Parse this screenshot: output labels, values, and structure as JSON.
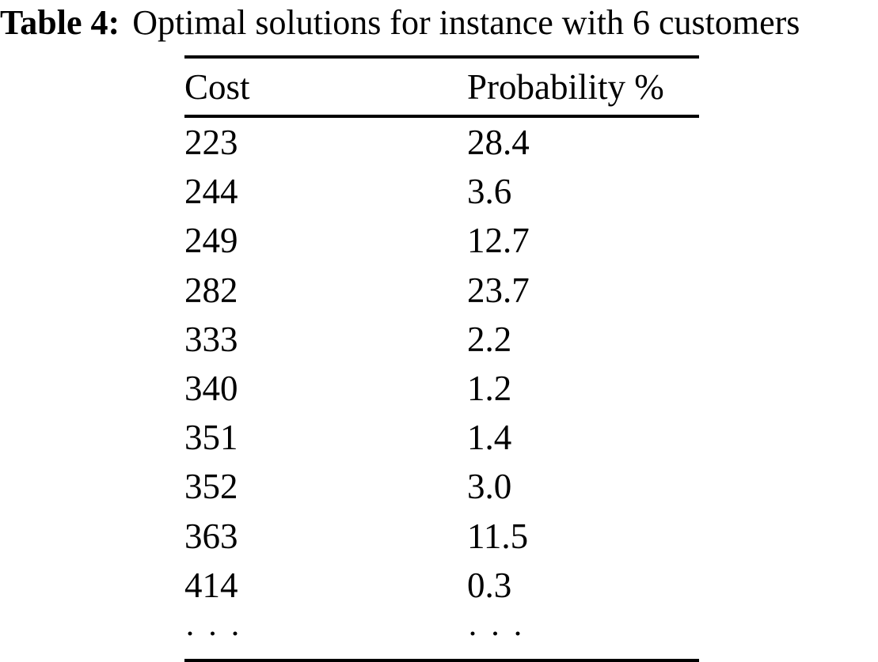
{
  "caption": {
    "label": "Table 4:",
    "text": "Optimal solutions for instance with 6 customers"
  },
  "table": {
    "columns": [
      "Cost",
      "Probability %"
    ],
    "rows": [
      [
        "223",
        "28.4"
      ],
      [
        "244",
        "3.6"
      ],
      [
        "249",
        "12.7"
      ],
      [
        "282",
        "23.7"
      ],
      [
        "333",
        "2.2"
      ],
      [
        "340",
        "1.2"
      ],
      [
        "351",
        "1.4"
      ],
      [
        "352",
        "3.0"
      ],
      [
        "363",
        "11.5"
      ],
      [
        "414",
        "0.3"
      ],
      [
        "· · ·",
        "· · ·"
      ]
    ]
  },
  "colors": {
    "text": "#000000",
    "background": "#ffffff",
    "rule": "#000000"
  }
}
